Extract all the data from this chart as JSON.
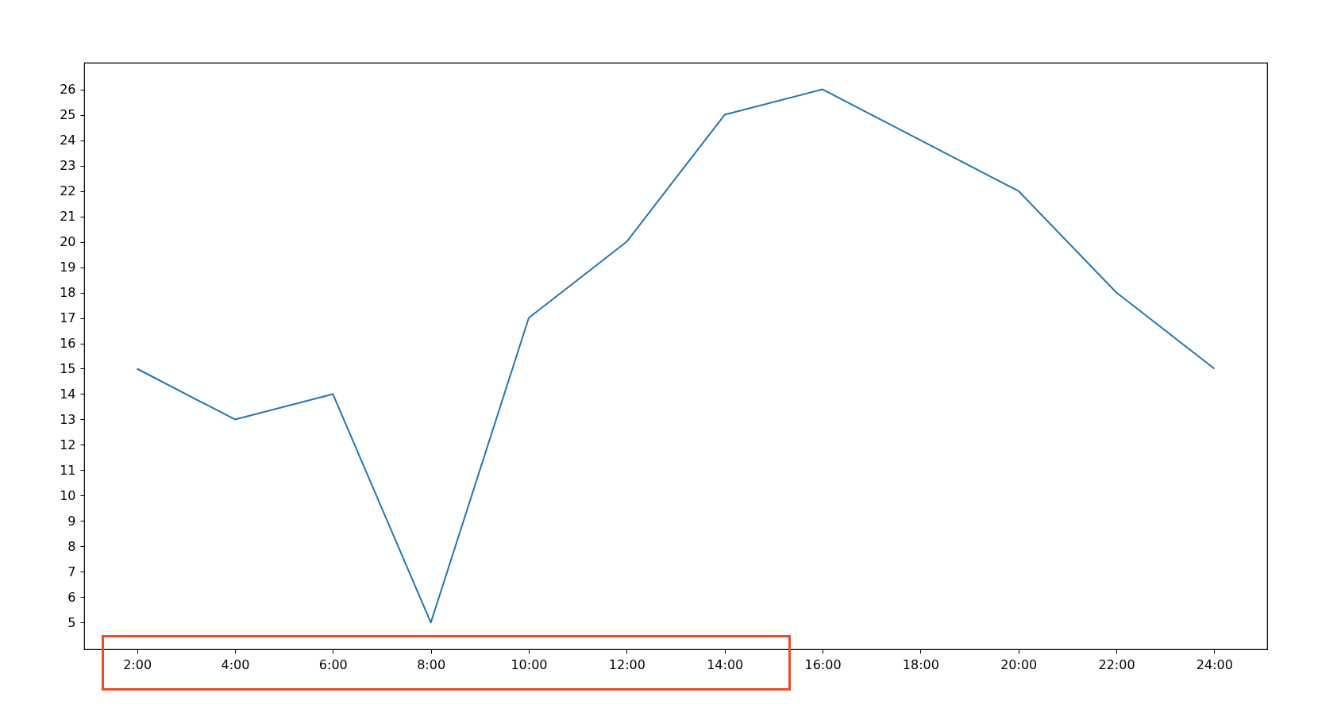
{
  "chart_data": {
    "type": "line",
    "categories": [
      "2:00",
      "4:00",
      "6:00",
      "8:00",
      "10:00",
      "12:00",
      "14:00",
      "16:00",
      "18:00",
      "20:00",
      "22:00",
      "24:00"
    ],
    "series": [
      {
        "color": "#1f77b4",
        "values": [
          15,
          13,
          14,
          5,
          17,
          20,
          25,
          26,
          24,
          22,
          18,
          15
        ]
      }
    ],
    "ylim": [
      3.95,
      27.05
    ],
    "yticks": [
      5,
      6,
      7,
      8,
      9,
      10,
      11,
      12,
      13,
      14,
      15,
      16,
      17,
      18,
      19,
      20,
      21,
      22,
      23,
      24,
      25,
      26
    ],
    "grid": false
  }
}
